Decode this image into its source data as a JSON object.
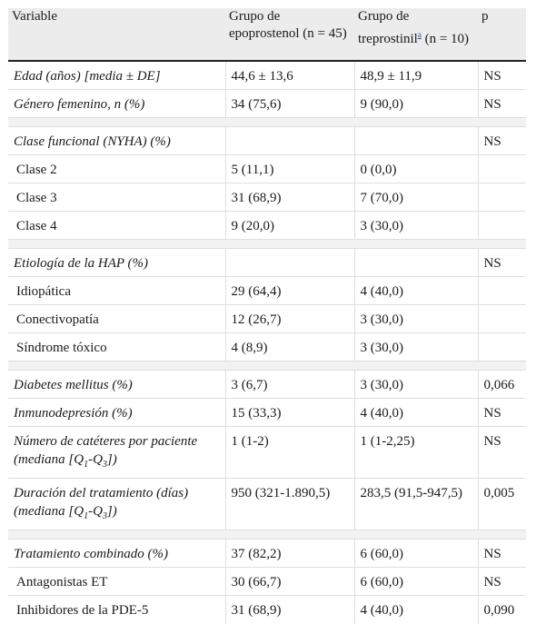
{
  "header": {
    "col_variable": "Variable",
    "col_epo": "Grupo de epoprostenol (n = 45)",
    "col_trep_a": "Grupo de treprostinil",
    "col_trep_sup": "a",
    "col_trep_b": " (n = 10)",
    "col_p": "p"
  },
  "rows": {
    "edad": {
      "label": "Edad (años) [media ± DE]",
      "epo": "44,6 ± 13,6",
      "trep": "48,9 ± 11,9",
      "p": "NS"
    },
    "genero": {
      "label": "Género femenino, n (%)",
      "epo": "34 (75,6)",
      "trep": "9 (90,0)",
      "p": "NS"
    },
    "clase_funcional": {
      "label": "Clase funcional (NYHA) (%)",
      "epo": "",
      "trep": "",
      "p": "NS"
    },
    "clase2": {
      "label": "Clase 2",
      "epo": "5 (11,1)",
      "trep": "0 (0,0)",
      "p": ""
    },
    "clase3": {
      "label": "Clase 3",
      "epo": "31 (68,9)",
      "trep": "7 (70,0)",
      "p": ""
    },
    "clase4": {
      "label": "Clase 4",
      "epo": "9 (20,0)",
      "trep": "3 (30,0)",
      "p": ""
    },
    "etiologia": {
      "label": "Etiología de la HAP (%)",
      "epo": "",
      "trep": "",
      "p": "NS"
    },
    "idiopatica": {
      "label": "Idiopática",
      "epo": "29 (64,4)",
      "trep": "4 (40,0)",
      "p": ""
    },
    "conectivopatia": {
      "label": "Conectivopatía",
      "epo": "12 (26,7)",
      "trep": "3 (30,0)",
      "p": ""
    },
    "sindrome": {
      "label": "Síndrome tóxico",
      "epo": "4 (8,9)",
      "trep": "3 (30,0)",
      "p": ""
    },
    "diabetes": {
      "label": "Diabetes mellitus (%)",
      "epo": "3 (6,7)",
      "trep": "3 (30,0)",
      "p": "0,066"
    },
    "inmuno": {
      "label": "Inmunodepresión (%)",
      "epo": "15 (33,3)",
      "trep": "4 (40,0)",
      "p": "NS"
    },
    "cateteres": {
      "label_a": "Número de catéteres por paciente (mediana [Q",
      "sub1": "1",
      "label_b": "-Q",
      "sub3": "3",
      "label_c": "])",
      "epo": "1 (1-2)",
      "trep": "1 (1-2,25)",
      "p": "NS"
    },
    "duracion": {
      "label_a": "Duración del tratamiento (días) (mediana [Q",
      "sub1": "1",
      "label_b": "-Q",
      "sub3": "3",
      "label_c": "])",
      "epo": "950 (321-1.890,5)",
      "trep": "283,5 (91,5-947,5)",
      "p": "0,005"
    },
    "combinado": {
      "label": "Tratamiento combinado (%)",
      "epo": "37 (82,2)",
      "trep": "6 (60,0)",
      "p": "NS"
    },
    "antagonistas": {
      "label": "Antagonistas ET",
      "epo": "30 (66,7)",
      "trep": "6 (60,0)",
      "p": "NS"
    },
    "pde5": {
      "label": "Inhibidores de la PDE-5",
      "epo": "31 (68,9)",
      "trep": "4 (40,0)",
      "p": "0,090"
    }
  }
}
